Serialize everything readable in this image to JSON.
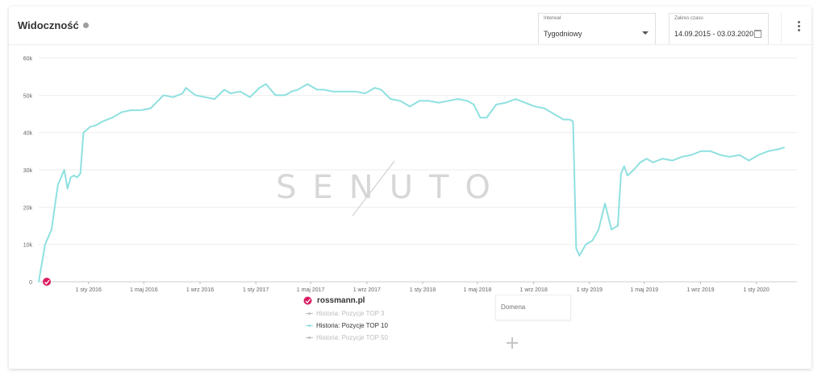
{
  "header": {
    "title": "Widoczność",
    "interval": {
      "label": "Interwał",
      "value": "Tygodniowy"
    },
    "time_range": {
      "label": "Zakres czasu",
      "value": "14.09.2015 - 03.03.2020"
    }
  },
  "watermark": "SENUTO",
  "legend": {
    "domain": "rossmann.pl",
    "items": [
      {
        "label": "Historia: Pozycje TOP 3",
        "active": false
      },
      {
        "label": "Historia: Pozycje TOP 10",
        "active": true
      },
      {
        "label": "Historia: Pozycje TOP 50",
        "active": false
      }
    ],
    "domain_input_placeholder": "Domena"
  },
  "colors": {
    "series": "#8fe0e0",
    "marker": "#d81b60",
    "inactive": "#bdbdbd",
    "grid": "#eeeeee"
  },
  "chart_data": {
    "type": "line",
    "title": "",
    "ylim": [
      0,
      60000
    ],
    "yticks": [
      "0",
      "10k",
      "20k",
      "30k",
      "40k",
      "50k",
      "60k"
    ],
    "xlim": [
      "2015-09-14",
      "2020-03-30"
    ],
    "xticks": [
      {
        "label": "1 sty 2016",
        "date": "2016-01-01"
      },
      {
        "label": "1 maj 2016",
        "date": "2016-05-01"
      },
      {
        "label": "1 wrz 2016",
        "date": "2016-09-01"
      },
      {
        "label": "1 sty 2017",
        "date": "2017-01-01"
      },
      {
        "label": "1 maj 2017",
        "date": "2017-05-01"
      },
      {
        "label": "1 wrz 2017",
        "date": "2017-09-01"
      },
      {
        "label": "1 sty 2018",
        "date": "2018-01-01"
      },
      {
        "label": "1 maj 2018",
        "date": "2018-05-01"
      },
      {
        "label": "1 wrz 2018",
        "date": "2018-09-01"
      },
      {
        "label": "1 sty 2019",
        "date": "2019-01-01"
      },
      {
        "label": "1 maj 2019",
        "date": "2019-05-01"
      },
      {
        "label": "1 wrz 2019",
        "date": "2019-09-01"
      },
      {
        "label": "1 sty 2020",
        "date": "2020-01-01"
      }
    ],
    "grid": true,
    "legend_position": "bottom",
    "series": [
      {
        "name": "Historia: Pozycje TOP 10",
        "x": [
          "2015-09-14",
          "2015-09-28",
          "2015-10-12",
          "2015-10-26",
          "2015-11-09",
          "2015-11-16",
          "2015-11-23",
          "2015-11-30",
          "2015-12-07",
          "2015-12-14",
          "2015-12-21",
          "2016-01-04",
          "2016-01-18",
          "2016-02-01",
          "2016-02-22",
          "2016-03-14",
          "2016-04-04",
          "2016-04-25",
          "2016-05-16",
          "2016-06-13",
          "2016-07-04",
          "2016-07-25",
          "2016-08-01",
          "2016-08-22",
          "2016-09-12",
          "2016-10-03",
          "2016-10-24",
          "2016-11-07",
          "2016-11-28",
          "2016-12-19",
          "2017-01-09",
          "2017-01-23",
          "2017-02-13",
          "2017-03-06",
          "2017-03-20",
          "2017-04-03",
          "2017-04-24",
          "2017-05-15",
          "2017-05-29",
          "2017-06-19",
          "2017-07-10",
          "2017-08-07",
          "2017-08-28",
          "2017-09-18",
          "2017-10-02",
          "2017-10-23",
          "2017-11-13",
          "2017-12-04",
          "2017-12-25",
          "2018-01-15",
          "2018-02-05",
          "2018-02-26",
          "2018-03-19",
          "2018-04-09",
          "2018-04-23",
          "2018-05-07",
          "2018-05-21",
          "2018-06-11",
          "2018-07-02",
          "2018-07-23",
          "2018-08-13",
          "2018-09-03",
          "2018-09-24",
          "2018-10-15",
          "2018-11-05",
          "2018-11-19",
          "2018-11-26",
          "2018-12-03",
          "2018-12-10",
          "2018-12-24",
          "2019-01-07",
          "2019-01-21",
          "2019-02-04",
          "2019-02-18",
          "2019-03-04",
          "2019-03-11",
          "2019-03-18",
          "2019-03-25",
          "2019-04-08",
          "2019-04-22",
          "2019-05-06",
          "2019-05-20",
          "2019-06-10",
          "2019-07-01",
          "2019-07-22",
          "2019-08-12",
          "2019-09-02",
          "2019-09-23",
          "2019-10-14",
          "2019-11-04",
          "2019-11-25",
          "2019-12-16",
          "2020-01-06",
          "2020-01-27",
          "2020-02-17",
          "2020-03-02"
        ],
        "y": [
          0,
          10000,
          14000,
          26000,
          30000,
          25000,
          28000,
          28500,
          28000,
          29000,
          40000,
          41500,
          42000,
          43000,
          44000,
          45500,
          46000,
          46000,
          46500,
          50000,
          49500,
          50500,
          52000,
          50000,
          49500,
          49000,
          51500,
          50500,
          51000,
          49500,
          52000,
          53000,
          50000,
          50000,
          51000,
          51500,
          53000,
          51500,
          51500,
          51000,
          51000,
          51000,
          50500,
          52000,
          51500,
          49000,
          48500,
          47000,
          48500,
          48500,
          48000,
          48500,
          49000,
          48500,
          47500,
          44000,
          44000,
          47500,
          48000,
          49000,
          48000,
          47000,
          46500,
          45000,
          43500,
          43500,
          43000,
          9000,
          7000,
          10000,
          11000,
          14000,
          21000,
          14000,
          15000,
          29000,
          31000,
          28500,
          30000,
          32000,
          33000,
          32000,
          33000,
          32500,
          33500,
          34000,
          35000,
          35000,
          34000,
          33500,
          34000,
          32500,
          34000,
          35000,
          35500,
          36000
        ]
      }
    ]
  }
}
